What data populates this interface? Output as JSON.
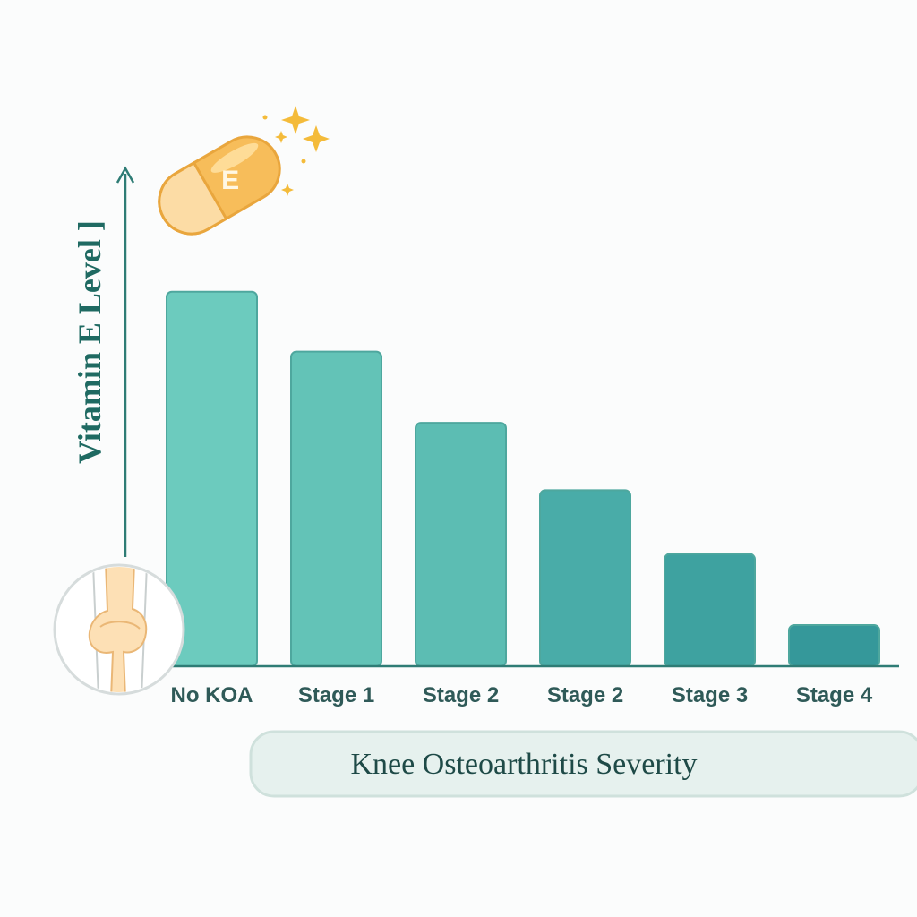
{
  "chart_data": {
    "type": "bar",
    "categories": [
      "No KOA",
      "Stage 1",
      "Stage 2",
      "Stage 2",
      "Stage 3",
      "Stage 4"
    ],
    "values": [
      100,
      84,
      65,
      47,
      30,
      11
    ],
    "ylabel": "Vitamin E Level ]",
    "xlabel": "Knee Osteoarthritis Severity",
    "ylim": [
      0,
      115
    ],
    "grid": false,
    "bar_colors": [
      "#6ccbbe",
      "#63c3b7",
      "#5cbdb3",
      "#49aca8",
      "#3ea2a0",
      "#35989a"
    ]
  },
  "decorations": {
    "pill_letter": "E",
    "pill_icon": "vitamin-e-capsule-icon",
    "joint_icon": "knee-joint-icon",
    "sparkle_icon": "sparkle-icon",
    "accent_color": "#2e7c75",
    "pill_color": "#f7bd5a"
  }
}
